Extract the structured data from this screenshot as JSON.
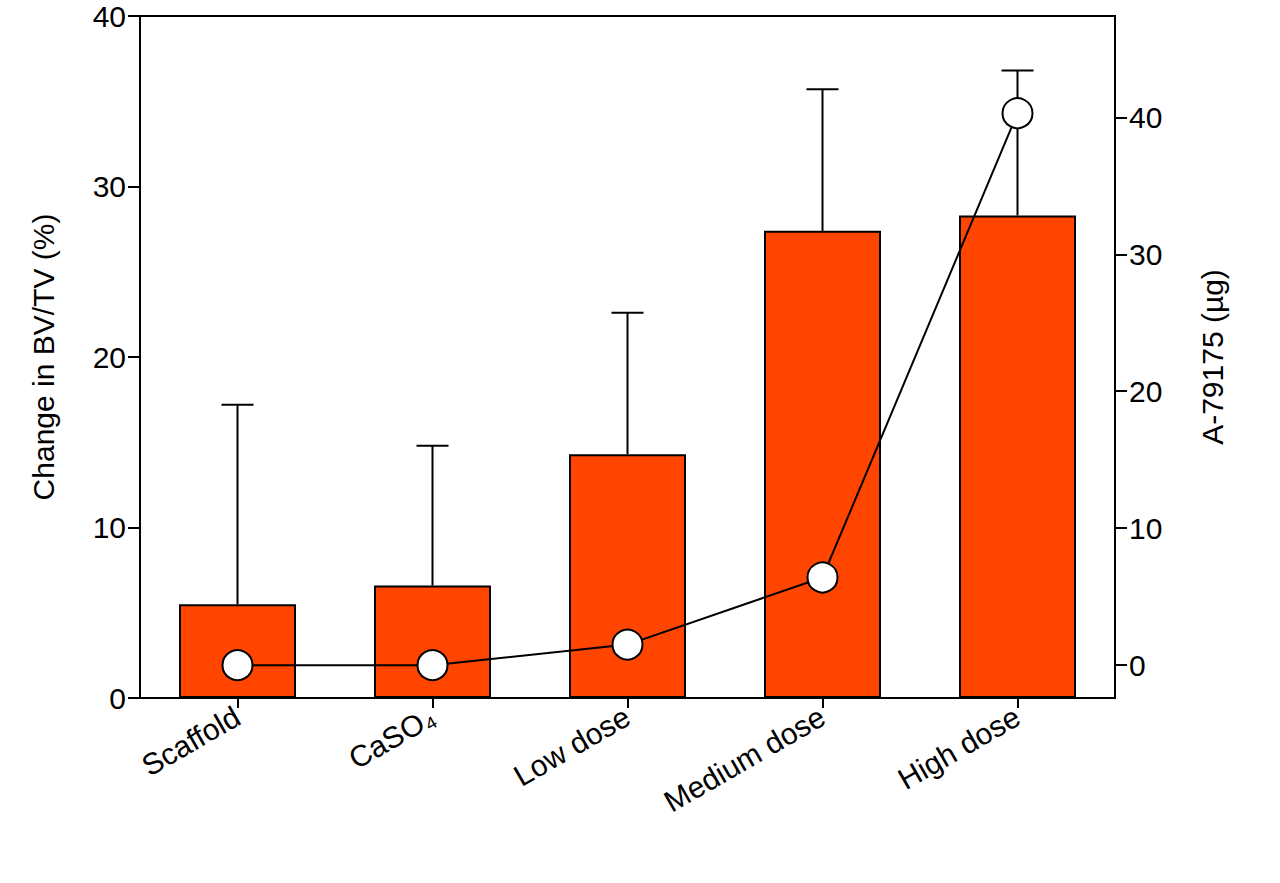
{
  "chart_data": {
    "type": "bar",
    "categories": [
      "Scaffold",
      "CaSO₄",
      "Low dose",
      "Medium dose",
      "High dose"
    ],
    "ylabel": "Change in BV/TV (%)",
    "y2label": "A-79175 (µg)",
    "ylim": [
      0,
      40
    ],
    "yticks": [
      0,
      10,
      20,
      30,
      40
    ],
    "y2lim": [
      -2.4,
      47.4
    ],
    "y2ticks": [
      0,
      10,
      20,
      30,
      40
    ],
    "grid": false,
    "series": [
      {
        "type": "bar",
        "color": "#ff4500",
        "values": [
          5.5,
          6.6,
          14.3,
          27.4,
          28.3
        ],
        "errors": [
          11.7,
          8.2,
          8.3,
          8.3,
          8.5
        ]
      },
      {
        "type": "line",
        "axis": "y2",
        "color": "#000000",
        "marker": "circle",
        "values": [
          0,
          0,
          1.5,
          6.4,
          40.3
        ]
      }
    ]
  }
}
